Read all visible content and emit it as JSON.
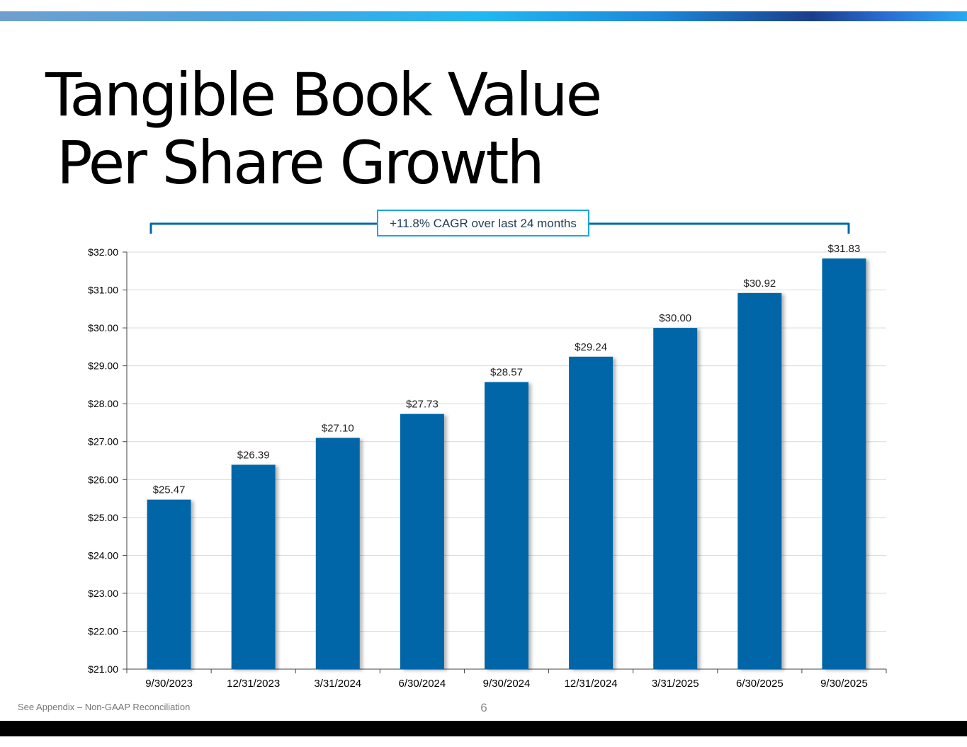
{
  "slide": {
    "title_line1": "Tangible Book Value",
    "title_line2": "Per Share Growth",
    "footnote": "See Appendix – Non-GAAP Reconciliation",
    "page_number": "6",
    "callout": "+11.8% CAGR over last 24 months"
  },
  "colors": {
    "bar": "#0066a8",
    "bracket": "#0068ad",
    "callout_border": "#1aa7e0",
    "gridline": "#d9d9d9"
  },
  "chart_data": {
    "type": "bar",
    "title": "Tangible Book Value Per Share Growth",
    "categories": [
      "9/30/2023",
      "12/31/2023",
      "3/31/2024",
      "6/30/2024",
      "9/30/2024",
      "12/31/2024",
      "3/31/2025",
      "6/30/2025",
      "9/30/2025"
    ],
    "values": [
      25.47,
      26.39,
      27.1,
      27.73,
      28.57,
      29.24,
      30.0,
      30.92,
      31.83
    ],
    "data_labels": [
      "$25.47",
      "$26.39",
      "$27.10",
      "$27.73",
      "$28.57",
      "$29.24",
      "$30.00",
      "$30.92",
      "$31.83"
    ],
    "ylim": [
      21,
      32
    ],
    "y_ticks": [
      21,
      22,
      23,
      24,
      25,
      26,
      27,
      28,
      29,
      30,
      31,
      32
    ],
    "y_tick_labels": [
      "$21.00",
      "$22.00",
      "$23.00",
      "$24.00",
      "$25.00",
      "$26.00",
      "$27.00",
      "$28.00",
      "$29.00",
      "$30.00",
      "$31.00",
      "$32.00"
    ],
    "xlabel": "",
    "ylabel": "",
    "grid": true,
    "annotation": "+11.8% CAGR over last 24 months"
  }
}
